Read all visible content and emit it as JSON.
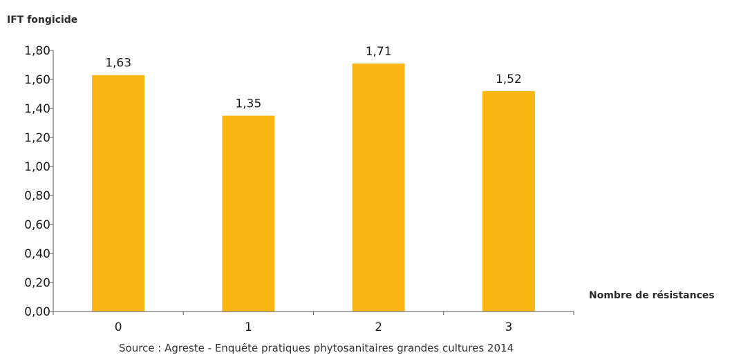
{
  "chart_data": {
    "type": "bar",
    "ylabel": "IFT fongicide",
    "xlabel": "Nombre de résistances",
    "categories": [
      "0",
      "1",
      "2",
      "3"
    ],
    "values": [
      1.63,
      1.35,
      1.71,
      1.52
    ],
    "value_labels": [
      "1,63",
      "1,35",
      "1,71",
      "1,52"
    ],
    "ylim": [
      0,
      1.8
    ],
    "yticks": [
      "0,00",
      "0,20",
      "0,40",
      "0,60",
      "0,80",
      "1,00",
      "1,20",
      "1,40",
      "1,60",
      "1,80"
    ],
    "grid": false,
    "bar_color": "#FBB614"
  },
  "source": "Source :   Agreste - Enquête pratiques phytosanitaires grandes cultures 2014"
}
